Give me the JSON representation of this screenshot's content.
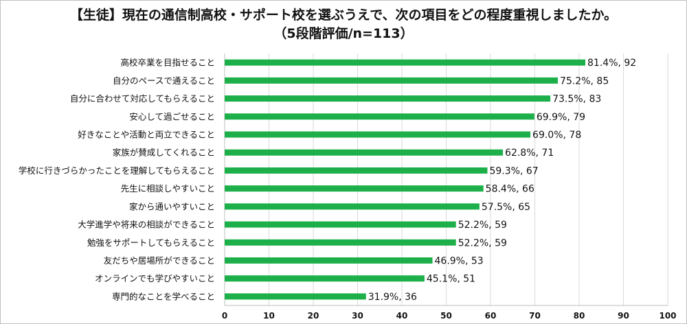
{
  "chart_data": {
    "type": "bar",
    "orientation": "horizontal",
    "title": "【生徒】現在の通信制高校・サポート校を選ぶうえで、次の項目をどの程度重視しましたか。",
    "subtitle": "（5段階評価/n=113）",
    "xlim": [
      0,
      100
    ],
    "xticks": [
      "0",
      "10",
      "20",
      "30",
      "40",
      "50",
      "60",
      "70",
      "80",
      "90",
      "100"
    ],
    "grid": true,
    "bar_color": "#1db04a",
    "categories": [
      "高校卒業を目指せること",
      "自分のペースで通えること",
      "自分に合わせて対応してもらえること",
      "安心して過ごせること",
      "好きなことや活動と両立できること",
      "家族が賛成してくれること",
      "学校に行きづらかったことを理解してもらえること",
      "先生に相談しやすいこと",
      "家から通いやすいこと",
      "大学進学や将来の相談ができること",
      "勉強をサポートしてもらえること",
      "友だちや居場所ができること",
      "オンラインでも学びやすいこと",
      "専門的なことを学べること"
    ],
    "values": [
      81.4,
      75.2,
      73.5,
      69.9,
      69.0,
      62.8,
      59.3,
      58.4,
      57.5,
      52.2,
      52.2,
      46.9,
      45.1,
      31.9
    ],
    "data_labels": [
      "81.4%, 92",
      "75.2%, 85",
      "73.5%, 83",
      "69.9%, 79",
      "69.0%, 78",
      "62.8%, 71",
      "59.3%, 67",
      "58.4%, 66",
      "57.5%, 65",
      "52.2%, 59",
      "52.2%, 59",
      "46.9%, 53",
      "45.1%, 51",
      "31.9%, 36"
    ]
  }
}
